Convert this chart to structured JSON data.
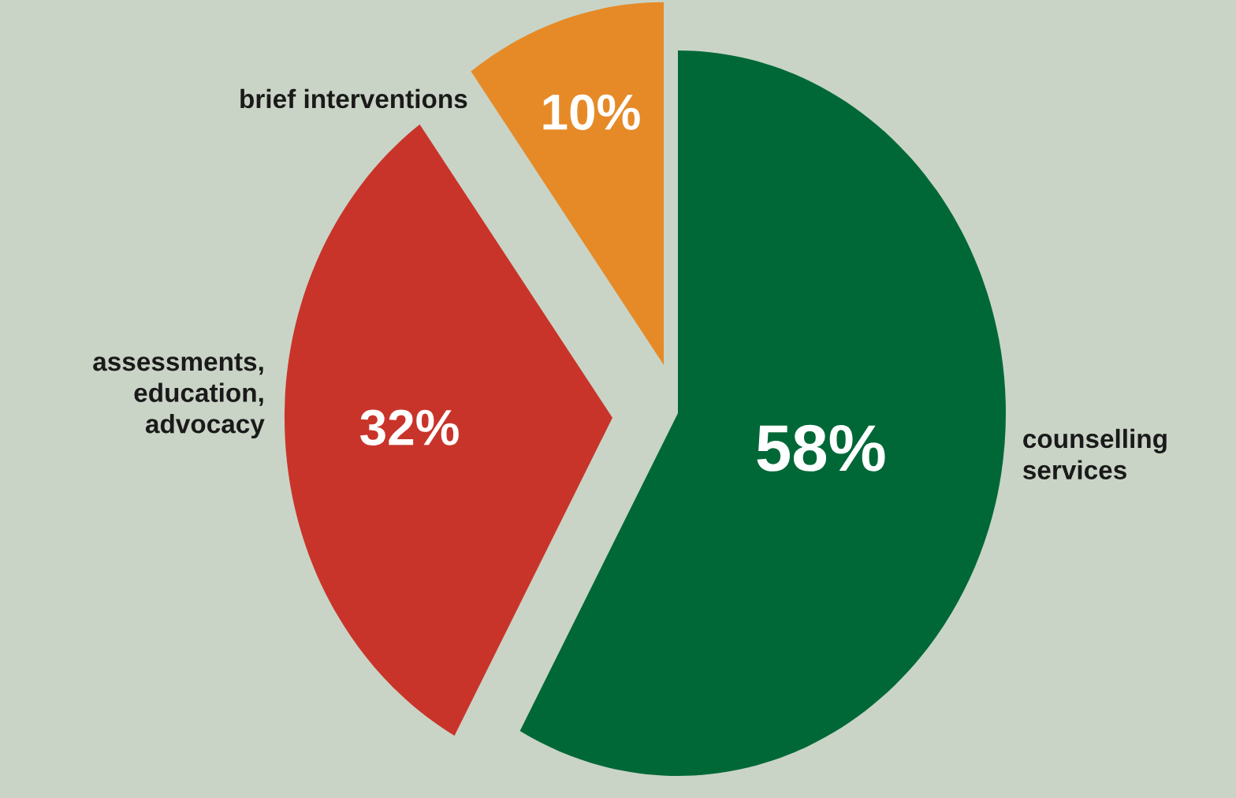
{
  "chart_data": {
    "type": "pie",
    "categories": [
      "counselling\nservices",
      "assessments,\neducation,\nadvocacy",
      "brief interventions"
    ],
    "values": [
      58,
      32,
      10
    ],
    "value_labels": [
      "58%",
      "32%",
      "10%"
    ],
    "colors": [
      "#006837",
      "#c9342a",
      "#e68a27"
    ]
  }
}
